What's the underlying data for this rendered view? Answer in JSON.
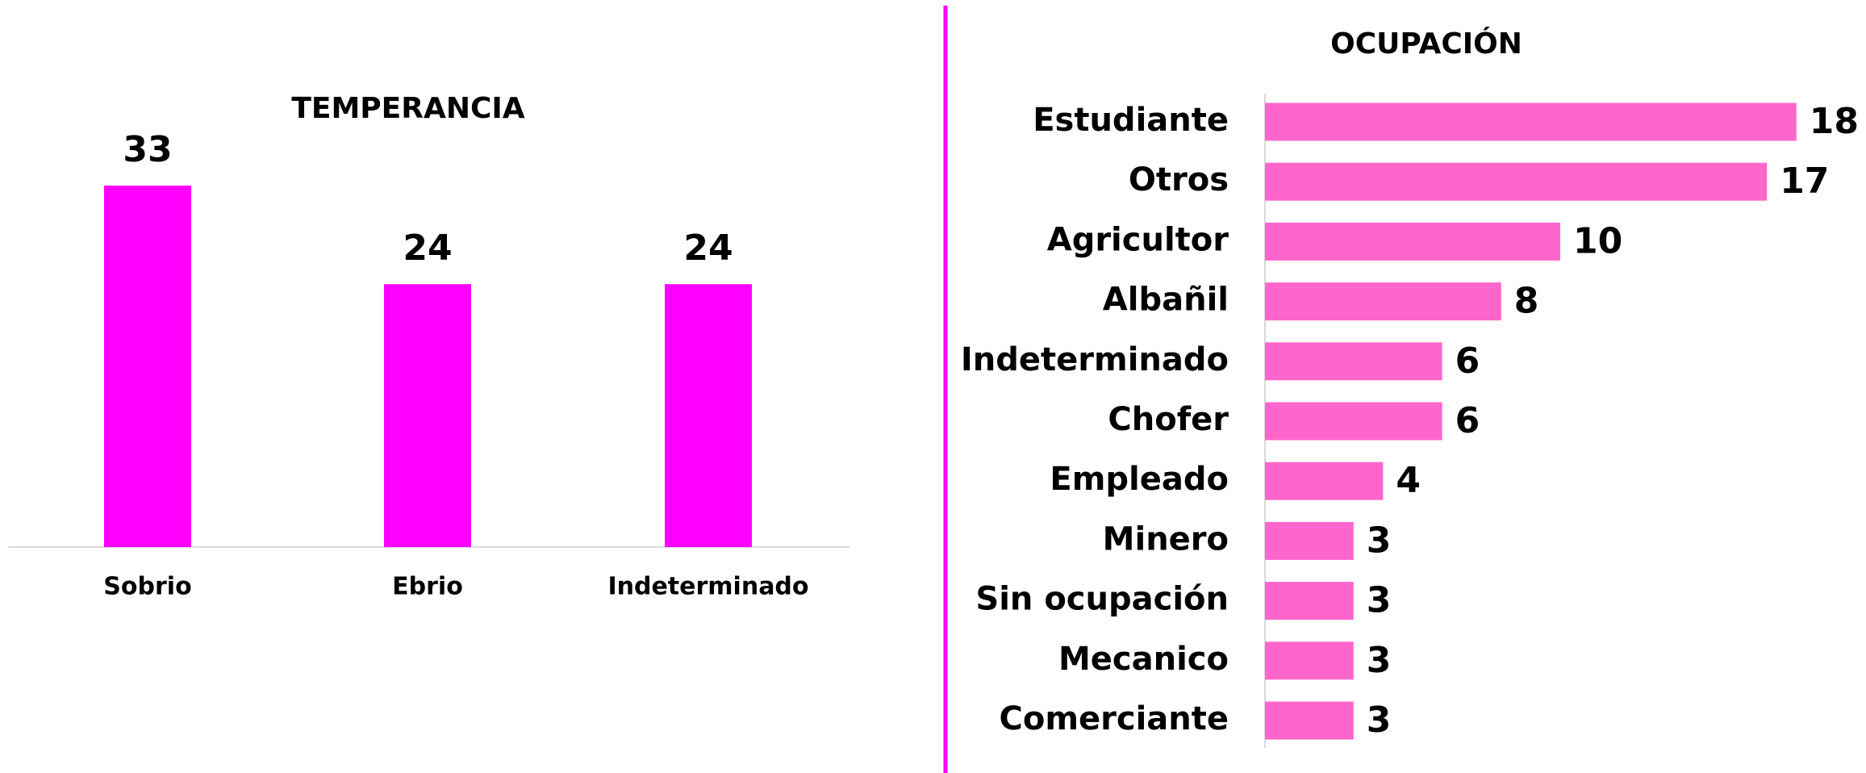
{
  "chart_data": [
    {
      "type": "bar",
      "title": "TEMPERANCIA",
      "categories": [
        "Sobrio",
        "Ebrio",
        "Indeterminado"
      ],
      "values": [
        33,
        24,
        24
      ],
      "color": "#ff00ff",
      "ylim": [
        0,
        40
      ]
    },
    {
      "type": "hbar",
      "title": "OCUPACIÓN",
      "categories": [
        "Estudiante",
        "Otros",
        "Agricultor",
        "Albañil",
        "Indeterminado",
        "Chofer",
        "Empleado",
        "Minero",
        "Sin ocupación",
        "Mecanico",
        "Comerciante"
      ],
      "values": [
        18,
        17,
        10,
        8,
        6,
        6,
        4,
        3,
        3,
        3,
        3
      ],
      "color": "#ff66cc",
      "xlim": [
        0,
        20
      ]
    }
  ]
}
